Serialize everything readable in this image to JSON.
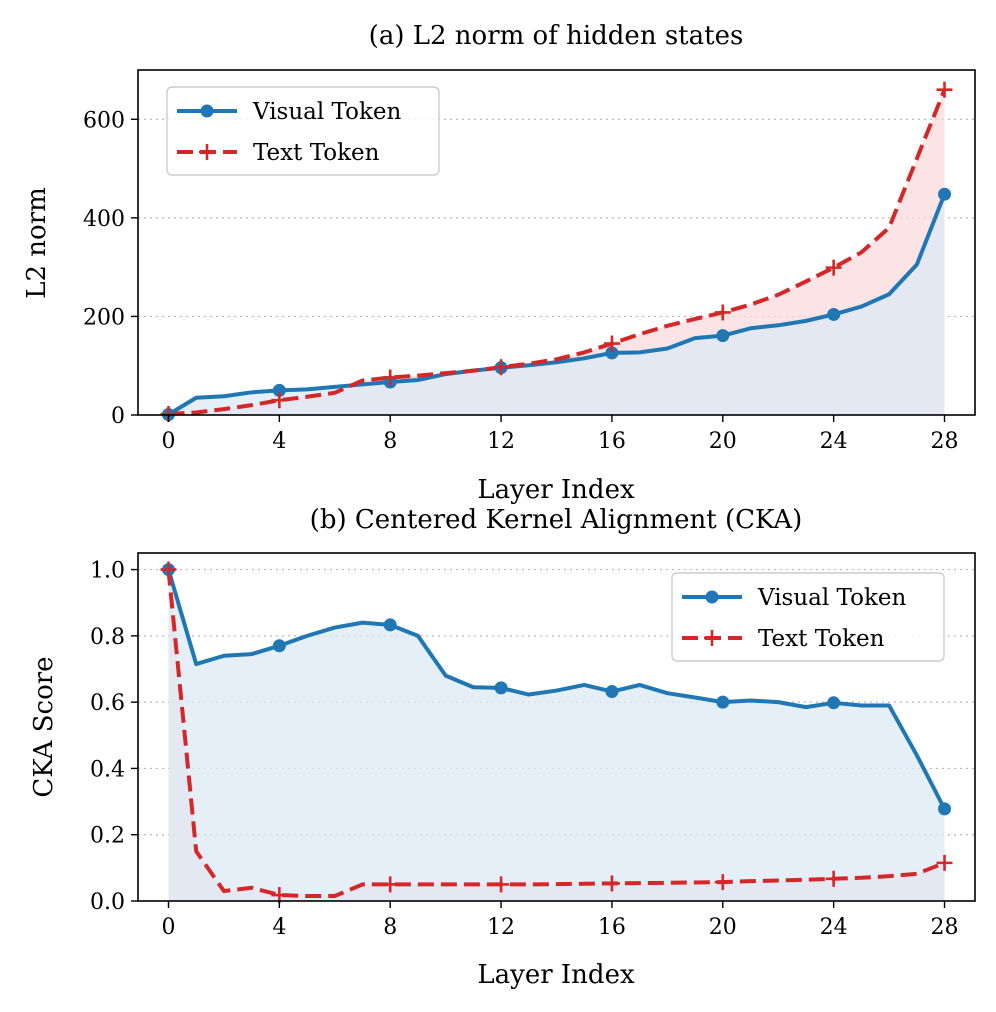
{
  "colors": {
    "visual": "#1f77b4",
    "text": "#d62728",
    "visual_fill": "#dce9f5",
    "text_fill": "#fadadd"
  },
  "chart_data": [
    {
      "id": "l2",
      "type": "line",
      "title": "(a) L2 norm of hidden states",
      "xlabel": "Layer Index",
      "ylabel": "L2 norm",
      "xlim": [
        -1.1,
        29.1
      ],
      "ylim": [
        0,
        700
      ],
      "xticks": [
        0,
        4,
        8,
        12,
        16,
        20,
        24,
        28
      ],
      "xtick_labels": [
        "0",
        "4",
        "8",
        "12",
        "16",
        "20",
        "24",
        "28"
      ],
      "yticks": [
        0,
        200,
        400,
        600
      ],
      "ytick_labels": [
        "0",
        "200",
        "400",
        "600"
      ],
      "grid": "y-dotted",
      "legend_position": "upper-left",
      "series": [
        {
          "name": "Visual Token",
          "color_key": "visual",
          "style": "solid",
          "marker": "circle",
          "marker_every": 4,
          "x": [
            0,
            1,
            2,
            3,
            4,
            5,
            6,
            7,
            8,
            9,
            10,
            11,
            12,
            13,
            14,
            15,
            16,
            17,
            18,
            19,
            20,
            21,
            22,
            23,
            24,
            25,
            26,
            27,
            28
          ],
          "values": [
            1,
            35,
            38,
            46,
            50,
            52,
            57,
            62,
            67,
            71,
            83,
            90,
            96,
            101,
            107,
            115,
            126,
            127,
            135,
            156,
            161,
            176,
            182,
            191,
            204,
            220,
            245,
            305,
            448
          ]
        },
        {
          "name": "Text Token",
          "color_key": "text",
          "style": "dashed",
          "marker": "plus",
          "marker_every": 4,
          "x": [
            0,
            1,
            2,
            3,
            4,
            5,
            6,
            7,
            8,
            9,
            10,
            11,
            12,
            13,
            14,
            15,
            16,
            17,
            18,
            19,
            20,
            21,
            22,
            23,
            24,
            25,
            26,
            27,
            28
          ],
          "values": [
            2,
            5,
            12,
            20,
            30,
            37,
            45,
            70,
            76,
            80,
            85,
            90,
            97,
            104,
            113,
            127,
            145,
            164,
            181,
            195,
            208,
            224,
            244,
            271,
            299,
            330,
            380,
            520,
            660
          ]
        }
      ]
    },
    {
      "id": "cka",
      "type": "line",
      "title": "(b) Centered Kernel Alignment (CKA)",
      "xlabel": "Layer Index",
      "ylabel": "CKA Score",
      "xlim": [
        -1.1,
        29.1
      ],
      "ylim": [
        0,
        1.05
      ],
      "xticks": [
        0,
        4,
        8,
        12,
        16,
        20,
        24,
        28
      ],
      "xtick_labels": [
        "0",
        "4",
        "8",
        "12",
        "16",
        "20",
        "24",
        "28"
      ],
      "yticks": [
        0,
        0.2,
        0.4,
        0.6,
        0.8,
        1.0
      ],
      "ytick_labels": [
        "0.0",
        "0.2",
        "0.4",
        "0.6",
        "0.8",
        "1.0"
      ],
      "grid": "y-dotted",
      "legend_position": "upper-right",
      "series": [
        {
          "name": "Visual Token",
          "color_key": "visual",
          "style": "solid",
          "marker": "circle",
          "marker_every": 4,
          "x": [
            0,
            1,
            2,
            3,
            4,
            5,
            6,
            7,
            8,
            9,
            10,
            11,
            12,
            13,
            14,
            15,
            16,
            17,
            18,
            19,
            20,
            21,
            22,
            23,
            24,
            25,
            26,
            27,
            28
          ],
          "values": [
            1.0,
            0.715,
            0.74,
            0.745,
            0.77,
            0.8,
            0.825,
            0.84,
            0.833,
            0.8,
            0.68,
            0.645,
            0.643,
            0.623,
            0.635,
            0.652,
            0.632,
            0.652,
            0.627,
            0.614,
            0.6,
            0.605,
            0.6,
            0.585,
            0.598,
            0.59,
            0.59,
            0.44,
            0.278
          ]
        },
        {
          "name": "Text Token",
          "color_key": "text",
          "style": "dashed",
          "marker": "plus",
          "marker_every": 4,
          "x": [
            0,
            1,
            2,
            3,
            4,
            5,
            6,
            7,
            8,
            9,
            10,
            11,
            12,
            13,
            14,
            15,
            16,
            17,
            18,
            19,
            20,
            21,
            22,
            23,
            24,
            25,
            26,
            27,
            28
          ],
          "values": [
            1.0,
            0.15,
            0.03,
            0.04,
            0.018,
            0.015,
            0.015,
            0.05,
            0.05,
            0.05,
            0.05,
            0.05,
            0.05,
            0.05,
            0.051,
            0.052,
            0.053,
            0.054,
            0.055,
            0.056,
            0.057,
            0.06,
            0.062,
            0.064,
            0.067,
            0.07,
            0.075,
            0.082,
            0.115
          ]
        }
      ]
    }
  ]
}
